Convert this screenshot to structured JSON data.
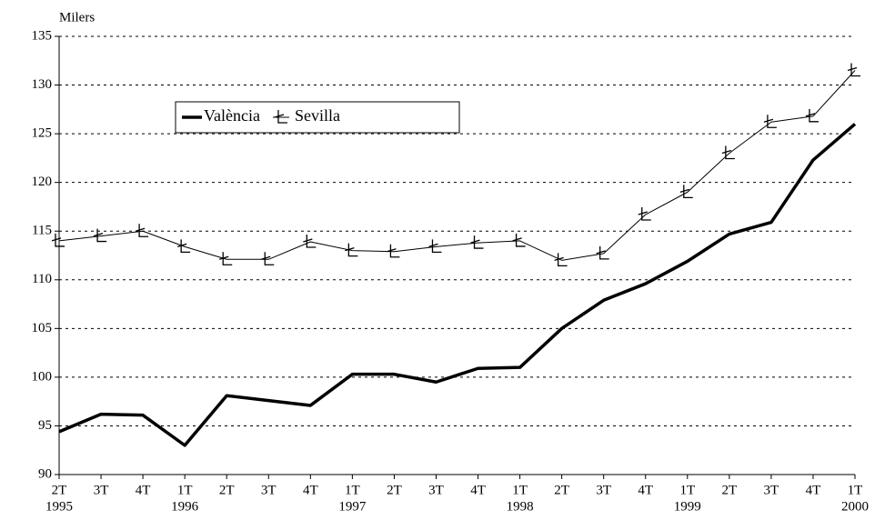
{
  "chart_data": {
    "type": "line",
    "y_axis_label": "Milers",
    "categories": [
      "2T",
      "3T",
      "4T",
      "1T",
      "2T",
      "3T",
      "4T",
      "1T",
      "2T",
      "3T",
      "4T",
      "1T",
      "2T",
      "3T",
      "4T",
      "1T",
      "2T",
      "3T",
      "4T",
      "1T"
    ],
    "category_groups": [
      "1995",
      null,
      null,
      "1996",
      null,
      null,
      null,
      "1997",
      null,
      null,
      null,
      "1998",
      null,
      null,
      null,
      "1999",
      null,
      null,
      null,
      "2000"
    ],
    "series": [
      {
        "name": "València",
        "color": "#000000",
        "line_width": 3.5,
        "marker": false,
        "values": [
          94.4,
          96.2,
          96.1,
          93.0,
          98.1,
          97.6,
          97.1,
          100.3,
          100.3,
          99.5,
          100.9,
          101.0,
          105.0,
          107.9,
          109.6,
          111.9,
          114.7,
          115.9,
          122.3,
          126.0
        ]
      },
      {
        "name": "Sevilla",
        "color": "#000000",
        "line_width": 1,
        "marker": true,
        "values": [
          114.0,
          114.5,
          115.0,
          113.4,
          112.1,
          112.1,
          113.9,
          113.0,
          112.9,
          113.4,
          113.8,
          114.0,
          112.0,
          112.7,
          116.7,
          119.0,
          123.0,
          126.2,
          126.8,
          131.5
        ]
      }
    ],
    "ylim": [
      90,
      135
    ],
    "yticks": [
      90,
      95,
      100,
      105,
      110,
      115,
      120,
      125,
      130,
      135
    ],
    "grid": true
  }
}
